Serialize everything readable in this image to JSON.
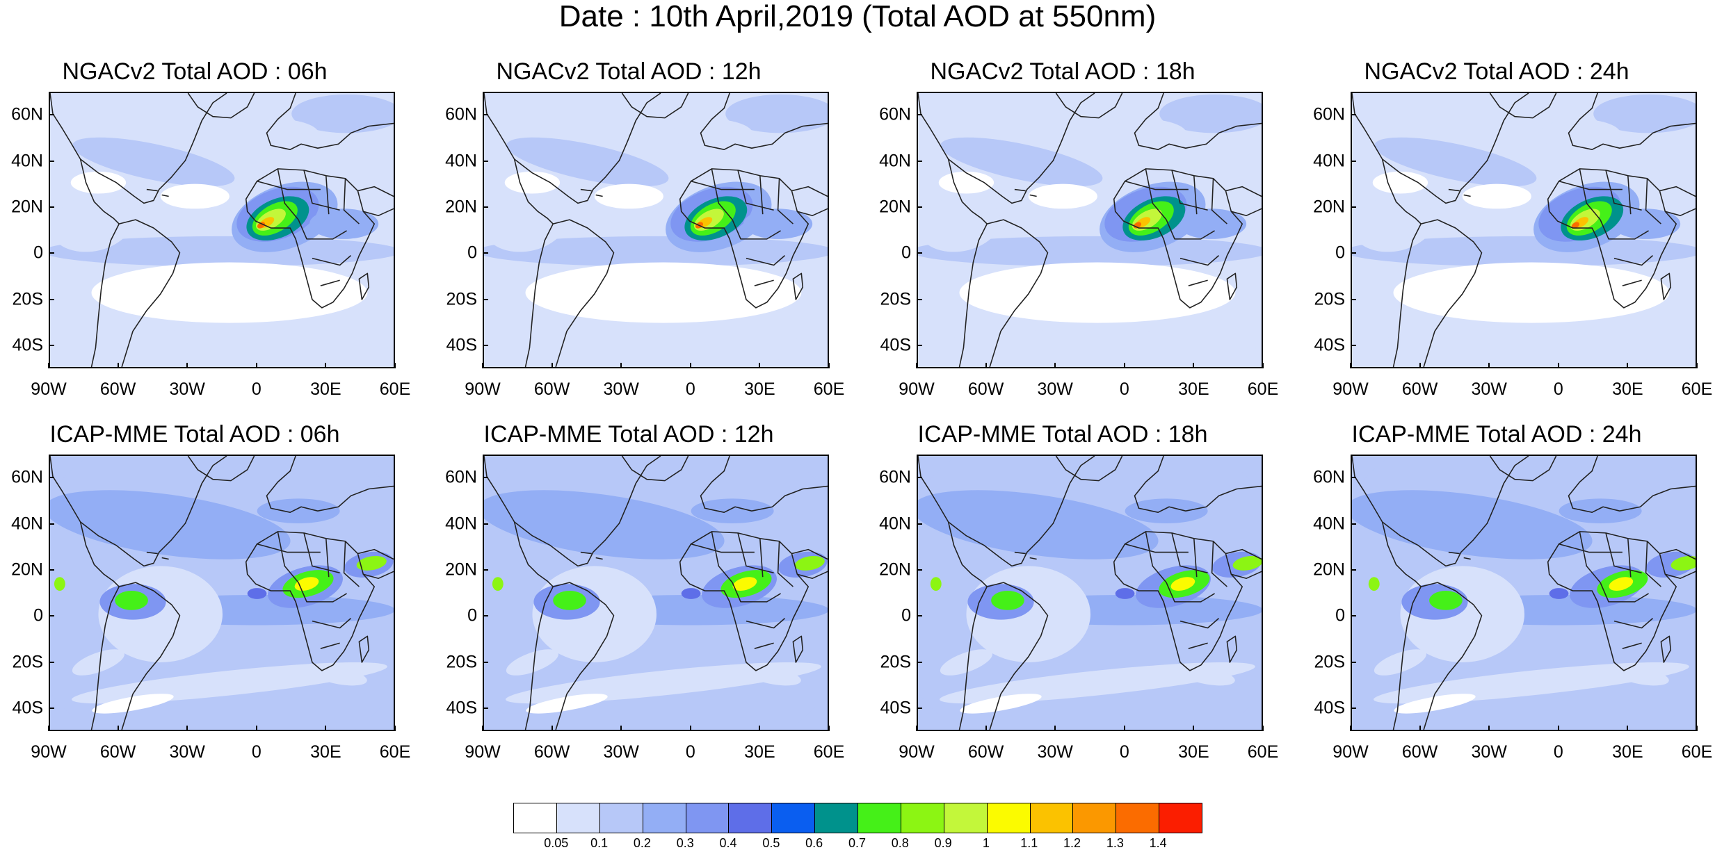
{
  "title": "Date : 10th April,2019 (Total AOD at 550nm)",
  "lat_labels": [
    "60N",
    "40N",
    "20N",
    "0",
    "20S",
    "40S"
  ],
  "lon_labels": [
    "90W",
    "60W",
    "30W",
    "0",
    "30E",
    "60E"
  ],
  "panels": [
    {
      "title": "NGACv2 Total AOD : 06h",
      "model": "NGACv2"
    },
    {
      "title": "NGACv2 Total AOD : 12h",
      "model": "NGACv2"
    },
    {
      "title": "NGACv2 Total AOD : 18h",
      "model": "NGACv2"
    },
    {
      "title": "NGACv2 Total AOD : 24h",
      "model": "NGACv2"
    },
    {
      "title": "ICAP-MME Total AOD : 06h",
      "model": "ICAP"
    },
    {
      "title": "ICAP-MME Total AOD : 12h",
      "model": "ICAP"
    },
    {
      "title": "ICAP-MME Total AOD : 18h",
      "model": "ICAP"
    },
    {
      "title": "ICAP-MME Total AOD : 24h",
      "model": "ICAP"
    }
  ],
  "colorbar": {
    "colors": [
      "#ffffff",
      "#d7e1fb",
      "#b7c8f8",
      "#93aef5",
      "#7f96f2",
      "#5e6ee8",
      "#0a5ef0",
      "#00928c",
      "#45f018",
      "#8cf513",
      "#c3f73a",
      "#fbfb00",
      "#fbc200",
      "#fb9800",
      "#fb6c00",
      "#fb1e00"
    ],
    "labels": [
      "0.05",
      "0.1",
      "0.2",
      "0.3",
      "0.4",
      "0.5",
      "0.6",
      "0.7",
      "0.8",
      "0.9",
      "1",
      "1.1",
      "1.2",
      "1.3",
      "1.4"
    ]
  }
}
